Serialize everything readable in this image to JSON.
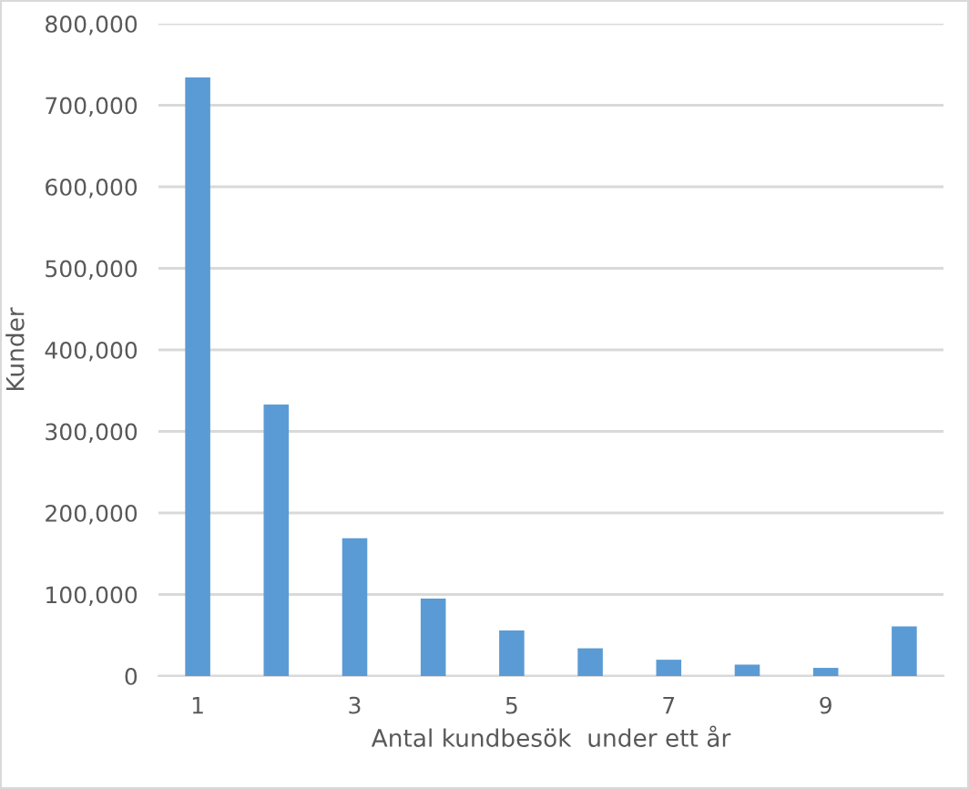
{
  "chart_data": {
    "type": "bar",
    "xlabel": "Antal kundbesök  under ett år",
    "ylabel": "Kunder",
    "categories": [
      "1",
      null,
      "3",
      null,
      "5",
      null,
      "7",
      null,
      "9",
      null
    ],
    "values": [
      734000,
      333000,
      169000,
      95000,
      56000,
      34000,
      20000,
      14000,
      10000,
      61000
    ],
    "color": "#5b9bd5",
    "ylim": [
      0,
      800000
    ],
    "yticks": [
      0,
      {
        "value": 100000,
        "label": "100,000"
      },
      {
        "value": 200000,
        "label": "200,000"
      },
      {
        "value": 300000,
        "label": "300,000"
      },
      {
        "value": 400000,
        "label": "400,000"
      },
      {
        "value": 500000,
        "label": "500,000"
      },
      {
        "value": 600000,
        "label": "600,000"
      },
      {
        "value": 700000,
        "label": "700,000"
      },
      {
        "value": 800000,
        "label": "800,000"
      }
    ],
    "grid": "y",
    "legend": false
  }
}
